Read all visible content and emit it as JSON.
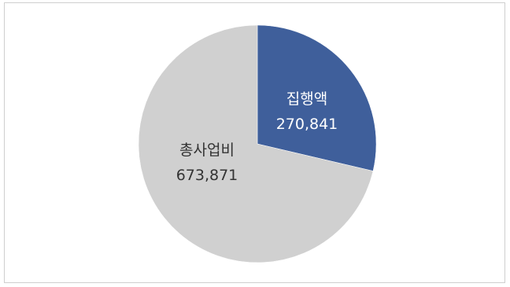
{
  "chart_data": {
    "type": "pie",
    "slices": [
      {
        "label": "집행액",
        "value": 270841,
        "display": "270,841",
        "color": "#3f5f9b",
        "text_color": "#ffffff"
      },
      {
        "label": "총사업비",
        "value": 673871,
        "display": "673,871",
        "color": "#d0d0d0",
        "text_color": "#333333"
      }
    ],
    "start_angle": "12 o'clock",
    "direction": "clockwise",
    "legend": "none",
    "title": ""
  }
}
